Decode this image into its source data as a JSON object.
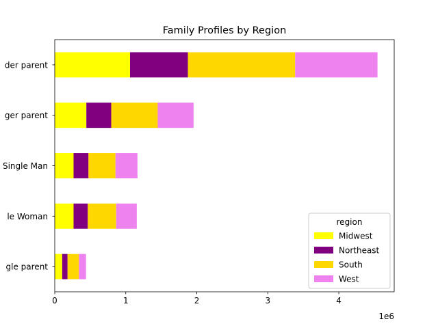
{
  "chart_data": {
    "type": "bar",
    "orientation": "horizontal",
    "stacked": true,
    "title": "Family Profiles by Region",
    "xlabel": "",
    "ylabel": "",
    "offset_label": "1e6",
    "categories": [
      "Older parent",
      "Younger parent",
      "Single Man",
      "Single Woman",
      "Single parent"
    ],
    "category_labels_visible": [
      "der parent",
      "ger parent",
      "Single Man",
      "le Woman",
      "gle parent"
    ],
    "series": [
      {
        "name": "Midwest",
        "color": "#ffff00",
        "values": [
          1060000,
          445000,
          265000,
          265000,
          105000
        ]
      },
      {
        "name": "Northeast",
        "color": "#800080",
        "values": [
          815000,
          350000,
          210000,
          200000,
          75000
        ]
      },
      {
        "name": "South",
        "color": "#ffd700",
        "values": [
          1510000,
          655000,
          380000,
          400000,
          160000
        ]
      },
      {
        "name": "West",
        "color": "#ee82ee",
        "values": [
          1160000,
          505000,
          310000,
          290000,
          100000
        ]
      }
    ],
    "xlim": [
      0,
      4780000
    ],
    "xticks": [
      0,
      1000000,
      2000000,
      3000000,
      4000000
    ],
    "xtick_labels": [
      "0",
      "1",
      "2",
      "3",
      "4"
    ],
    "grid": false,
    "legend": {
      "title": "region",
      "placement": "lower-right"
    }
  }
}
